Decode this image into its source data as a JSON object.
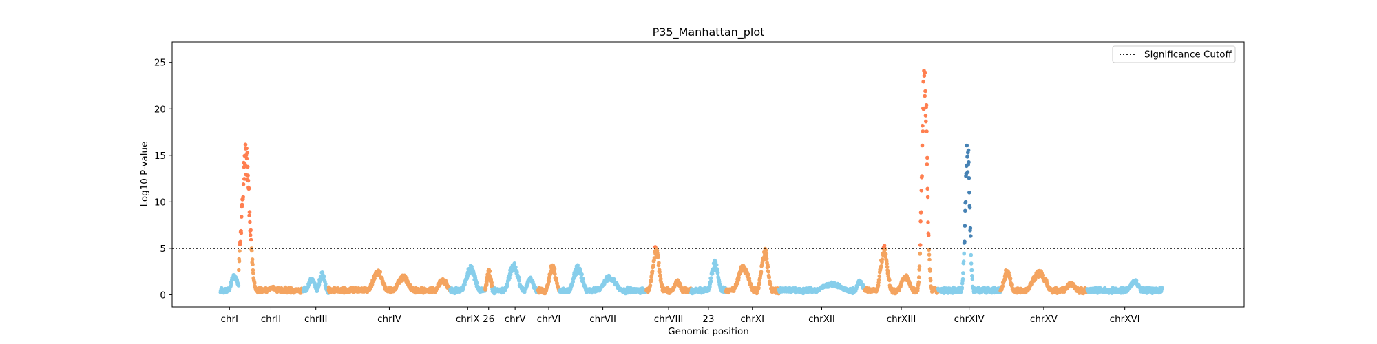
{
  "chart_data": {
    "type": "scatter",
    "title": "P35_Manhattan_plot",
    "xlabel": "Genomic position",
    "ylabel": "Log10 P-value",
    "ylim": [
      -1.3,
      27.2
    ],
    "xlim": [
      0,
      12300000
    ],
    "yticks": [
      0,
      5,
      10,
      15,
      20,
      25
    ],
    "threshold": 5,
    "legend": {
      "placement": "top-right",
      "label": "Significance Cutoff"
    },
    "grid": false,
    "colors": {
      "lightblue": "#87ceeb",
      "sandy": "#f4a460",
      "coral": "#ff7f50",
      "steelblue": "#4682b4",
      "axis": "#000000"
    },
    "chromosomes": [
      {
        "name": "chrI",
        "start": 0,
        "end": 230000,
        "baseColor": "#87ceeb",
        "sigColor": "#ff7f50",
        "peaks": [
          [
            180000,
            2.2,
            60000
          ]
        ]
      },
      {
        "name": "chrII",
        "start": 230000,
        "end": 1043000,
        "baseColor": "#f4a460",
        "sigColor": "#ff7f50",
        "peaks": [
          [
            320000,
            16.0,
            70000
          ],
          [
            650000,
            0.8,
            80000
          ]
        ]
      },
      {
        "name": "chrIII",
        "start": 1043000,
        "end": 1360000,
        "baseColor": "#87ceeb",
        "sigColor": "#ff7f50",
        "peaks": [
          [
            1150000,
            1.8,
            60000
          ],
          [
            1280000,
            2.4,
            50000
          ]
        ]
      },
      {
        "name": "chrIV",
        "start": 1360000,
        "end": 2892000,
        "baseColor": "#f4a460",
        "sigColor": "#ff7f50",
        "peaks": [
          [
            1980000,
            2.6,
            90000
          ],
          [
            2300000,
            2.0,
            100000
          ],
          [
            2800000,
            1.7,
            80000
          ]
        ]
      },
      {
        "name": "chrIX",
        "start": 2892000,
        "end": 3332000,
        "baseColor": "#87ceeb",
        "sigColor": "#ff7f50",
        "peaks": [
          [
            3150000,
            3.0,
            80000
          ]
        ]
      },
      {
        "name": "26",
        "start": 3332000,
        "end": 3420000,
        "baseColor": "#f4a460",
        "sigColor": "#ff7f50",
        "peaks": [
          [
            3380000,
            2.5,
            40000
          ]
        ]
      },
      {
        "name": "chrV",
        "start": 3420000,
        "end": 3997000,
        "baseColor": "#87ceeb",
        "sigColor": "#ff7f50",
        "peaks": [
          [
            3690000,
            3.3,
            80000
          ],
          [
            3900000,
            1.8,
            60000
          ]
        ]
      },
      {
        "name": "chrVI",
        "start": 3997000,
        "end": 4267000,
        "baseColor": "#f4a460",
        "sigColor": "#ff7f50",
        "peaks": [
          [
            4180000,
            3.2,
            60000
          ]
        ]
      },
      {
        "name": "chrVII",
        "start": 4267000,
        "end": 5358000,
        "baseColor": "#87ceeb",
        "sigColor": "#ff7f50",
        "peaks": [
          [
            4500000,
            3.0,
            80000
          ],
          [
            4900000,
            2.0,
            120000
          ]
        ]
      },
      {
        "name": "chrVIII",
        "start": 5358000,
        "end": 5921000,
        "baseColor": "#f4a460",
        "sigColor": "#ff7f50",
        "peaks": [
          [
            5480000,
            5.0,
            60000
          ],
          [
            5750000,
            1.5,
            60000
          ]
        ]
      },
      {
        "name": "23",
        "start": 5921000,
        "end": 6360000,
        "baseColor": "#87ceeb",
        "sigColor": "#ff7f50",
        "peaks": [
          [
            6220000,
            3.5,
            60000
          ]
        ]
      },
      {
        "name": "chrXI",
        "start": 6360000,
        "end": 7027000,
        "baseColor": "#f4a460",
        "sigColor": "#ff7f50",
        "peaks": [
          [
            6580000,
            3.2,
            90000
          ],
          [
            6850000,
            4.8,
            60000
          ]
        ]
      },
      {
        "name": "chrXII",
        "start": 7027000,
        "end": 8105000,
        "baseColor": "#87ceeb",
        "sigColor": "#ff7f50",
        "peaks": [
          [
            7700000,
            1.2,
            200000
          ],
          [
            8050000,
            1.5,
            60000
          ]
        ]
      },
      {
        "name": "chrXIII",
        "start": 8105000,
        "end": 9029000,
        "baseColor": "#f4a460",
        "sigColor": "#ff7f50",
        "peaks": [
          [
            8350000,
            5.3,
            60000
          ],
          [
            8620000,
            2.0,
            80000
          ],
          [
            8860000,
            25.8,
            45000
          ]
        ]
      },
      {
        "name": "chrXIV",
        "start": 9029000,
        "end": 9813000,
        "baseColor": "#87ceeb",
        "sigColor": "#4682b4",
        "peaks": [
          [
            9400000,
            16.5,
            40000
          ]
        ]
      },
      {
        "name": "chrXV",
        "start": 9813000,
        "end": 10905000,
        "baseColor": "#f4a460",
        "sigColor": "#ff7f50",
        "peaks": [
          [
            9900000,
            2.7,
            60000
          ],
          [
            10300000,
            2.5,
            120000
          ],
          [
            10700000,
            1.3,
            80000
          ]
        ]
      },
      {
        "name": "chrXVI",
        "start": 10905000,
        "end": 11853000,
        "baseColor": "#87ceeb",
        "sigColor": "#ff7f50",
        "peaks": [
          [
            11500000,
            1.5,
            80000
          ]
        ]
      }
    ]
  }
}
